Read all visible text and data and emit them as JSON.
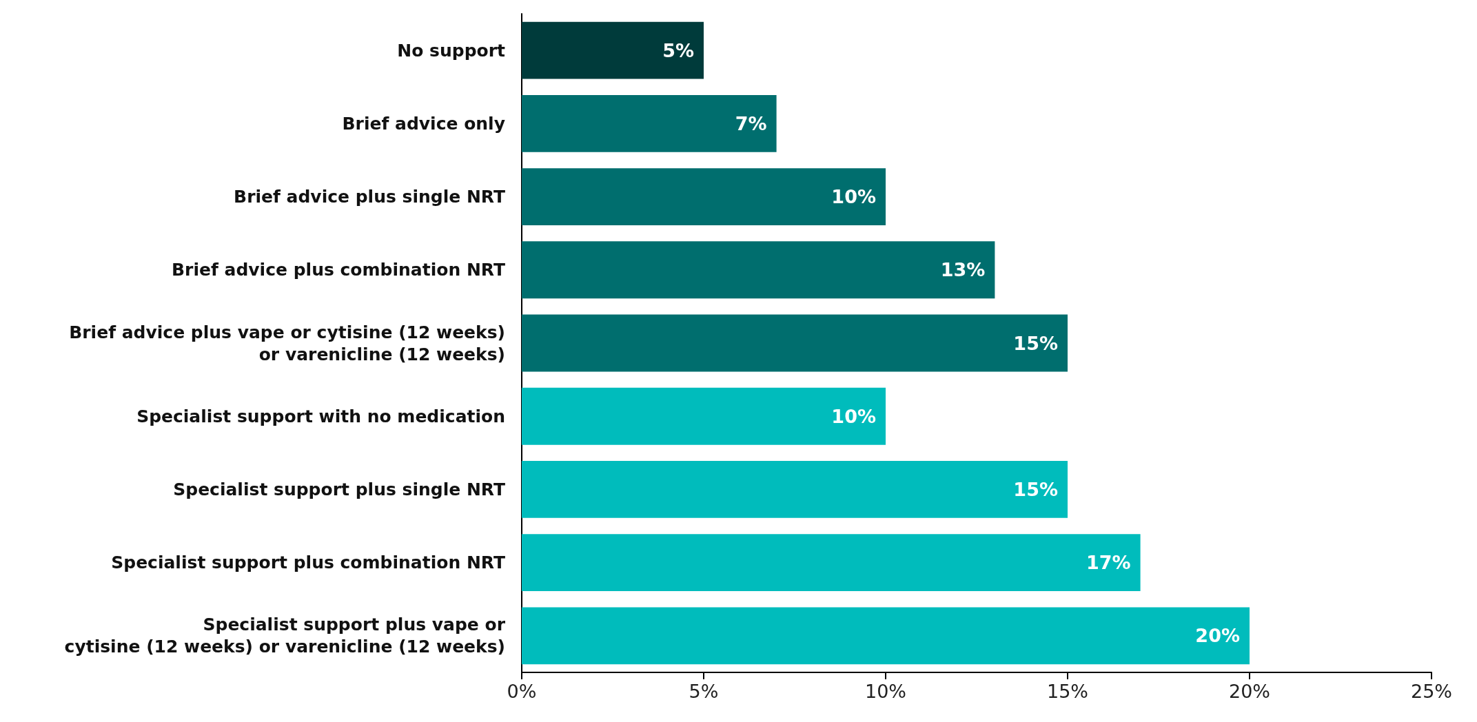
{
  "chart_data": {
    "type": "bar",
    "orientation": "horizontal",
    "categories": [
      "No support",
      "Brief advice only",
      "Brief advice plus single NRT",
      "Brief advice plus combination NRT",
      "Brief advice plus vape or cytisine (12 weeks)\nor varenicline (12 weeks)",
      "Specialist support with no medication",
      "Specialist support plus single NRT",
      "Specialist support plus combination NRT",
      "Specialist support plus vape or\ncytisine (12 weeks) or varenicline (12 weeks)"
    ],
    "values": [
      5,
      7,
      10,
      13,
      15,
      10,
      15,
      17,
      20
    ],
    "colors": [
      "#003b3b",
      "#006e6e",
      "#006e6e",
      "#006e6e",
      "#006e6e",
      "#00bcbc",
      "#00bcbc",
      "#00bcbc",
      "#00bcbc"
    ],
    "value_labels": [
      "5%",
      "7%",
      "10%",
      "13%",
      "15%",
      "10%",
      "15%",
      "17%",
      "20%"
    ],
    "xlim": [
      0,
      25
    ],
    "xticks": [
      {
        "value": 0,
        "label": "0%"
      },
      {
        "value": 5,
        "label": "5%"
      },
      {
        "value": 10,
        "label": "10%"
      },
      {
        "value": 15,
        "label": "15%"
      },
      {
        "value": 20,
        "label": "20%"
      },
      {
        "value": 25,
        "label": "25%"
      }
    ],
    "grid": false
  }
}
